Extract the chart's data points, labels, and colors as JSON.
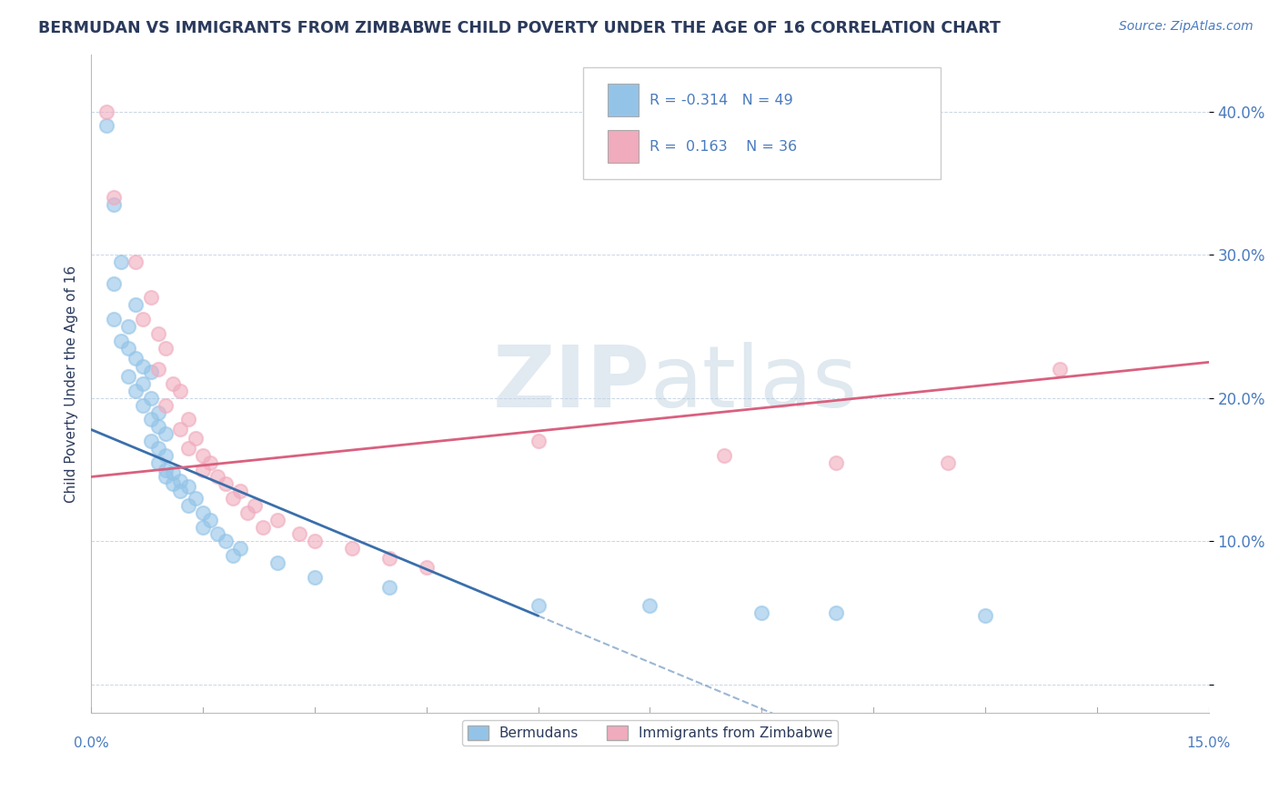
{
  "title": "BERMUDAN VS IMMIGRANTS FROM ZIMBABWE CHILD POVERTY UNDER THE AGE OF 16 CORRELATION CHART",
  "source": "Source: ZipAtlas.com",
  "ylabel": "Child Poverty Under the Age of 16",
  "yticks": [
    0.0,
    0.1,
    0.2,
    0.3,
    0.4
  ],
  "ytick_labels": [
    "",
    "10.0%",
    "20.0%",
    "30.0%",
    "40.0%"
  ],
  "xlim": [
    0.0,
    0.15
  ],
  "ylim": [
    -0.02,
    0.44
  ],
  "legend1_label": "Bermudans",
  "legend2_label": "Immigrants from Zimbabwe",
  "r1": -0.314,
  "n1": 49,
  "r2": 0.163,
  "n2": 36,
  "blue_color": "#93C4E8",
  "pink_color": "#F0ABBD",
  "blue_line_color": "#3A6FAB",
  "pink_line_color": "#D9607E",
  "title_color": "#2B3A5C",
  "axis_label_color": "#4A7BBF",
  "source_color": "#4A7BBF",
  "watermark_color": "#D0DBE8",
  "blue_dots": [
    [
      0.002,
      0.39
    ],
    [
      0.003,
      0.335
    ],
    [
      0.004,
      0.295
    ],
    [
      0.003,
      0.28
    ],
    [
      0.006,
      0.265
    ],
    [
      0.003,
      0.255
    ],
    [
      0.005,
      0.25
    ],
    [
      0.004,
      0.24
    ],
    [
      0.005,
      0.235
    ],
    [
      0.006,
      0.228
    ],
    [
      0.007,
      0.222
    ],
    [
      0.008,
      0.218
    ],
    [
      0.005,
      0.215
    ],
    [
      0.007,
      0.21
    ],
    [
      0.006,
      0.205
    ],
    [
      0.008,
      0.2
    ],
    [
      0.007,
      0.195
    ],
    [
      0.009,
      0.19
    ],
    [
      0.008,
      0.185
    ],
    [
      0.009,
      0.18
    ],
    [
      0.01,
      0.175
    ],
    [
      0.008,
      0.17
    ],
    [
      0.009,
      0.165
    ],
    [
      0.01,
      0.16
    ],
    [
      0.009,
      0.155
    ],
    [
      0.01,
      0.15
    ],
    [
      0.011,
      0.148
    ],
    [
      0.01,
      0.145
    ],
    [
      0.012,
      0.142
    ],
    [
      0.011,
      0.14
    ],
    [
      0.013,
      0.138
    ],
    [
      0.012,
      0.135
    ],
    [
      0.014,
      0.13
    ],
    [
      0.013,
      0.125
    ],
    [
      0.015,
      0.12
    ],
    [
      0.016,
      0.115
    ],
    [
      0.015,
      0.11
    ],
    [
      0.017,
      0.105
    ],
    [
      0.018,
      0.1
    ],
    [
      0.02,
      0.095
    ],
    [
      0.019,
      0.09
    ],
    [
      0.025,
      0.085
    ],
    [
      0.03,
      0.075
    ],
    [
      0.04,
      0.068
    ],
    [
      0.06,
      0.055
    ],
    [
      0.075,
      0.055
    ],
    [
      0.09,
      0.05
    ],
    [
      0.1,
      0.05
    ],
    [
      0.12,
      0.048
    ]
  ],
  "pink_dots": [
    [
      0.002,
      0.4
    ],
    [
      0.003,
      0.34
    ],
    [
      0.006,
      0.295
    ],
    [
      0.008,
      0.27
    ],
    [
      0.007,
      0.255
    ],
    [
      0.009,
      0.245
    ],
    [
      0.01,
      0.235
    ],
    [
      0.009,
      0.22
    ],
    [
      0.011,
      0.21
    ],
    [
      0.012,
      0.205
    ],
    [
      0.01,
      0.195
    ],
    [
      0.013,
      0.185
    ],
    [
      0.012,
      0.178
    ],
    [
      0.014,
      0.172
    ],
    [
      0.013,
      0.165
    ],
    [
      0.015,
      0.16
    ],
    [
      0.016,
      0.155
    ],
    [
      0.015,
      0.15
    ],
    [
      0.017,
      0.145
    ],
    [
      0.018,
      0.14
    ],
    [
      0.02,
      0.135
    ],
    [
      0.019,
      0.13
    ],
    [
      0.022,
      0.125
    ],
    [
      0.021,
      0.12
    ],
    [
      0.025,
      0.115
    ],
    [
      0.023,
      0.11
    ],
    [
      0.028,
      0.105
    ],
    [
      0.03,
      0.1
    ],
    [
      0.035,
      0.095
    ],
    [
      0.04,
      0.088
    ],
    [
      0.045,
      0.082
    ],
    [
      0.06,
      0.17
    ],
    [
      0.085,
      0.16
    ],
    [
      0.1,
      0.155
    ],
    [
      0.115,
      0.155
    ],
    [
      0.13,
      0.22
    ]
  ],
  "blue_line_x": [
    0.0,
    0.06
  ],
  "blue_line_solid_end": 0.06,
  "pink_line_x": [
    0.0,
    0.15
  ]
}
